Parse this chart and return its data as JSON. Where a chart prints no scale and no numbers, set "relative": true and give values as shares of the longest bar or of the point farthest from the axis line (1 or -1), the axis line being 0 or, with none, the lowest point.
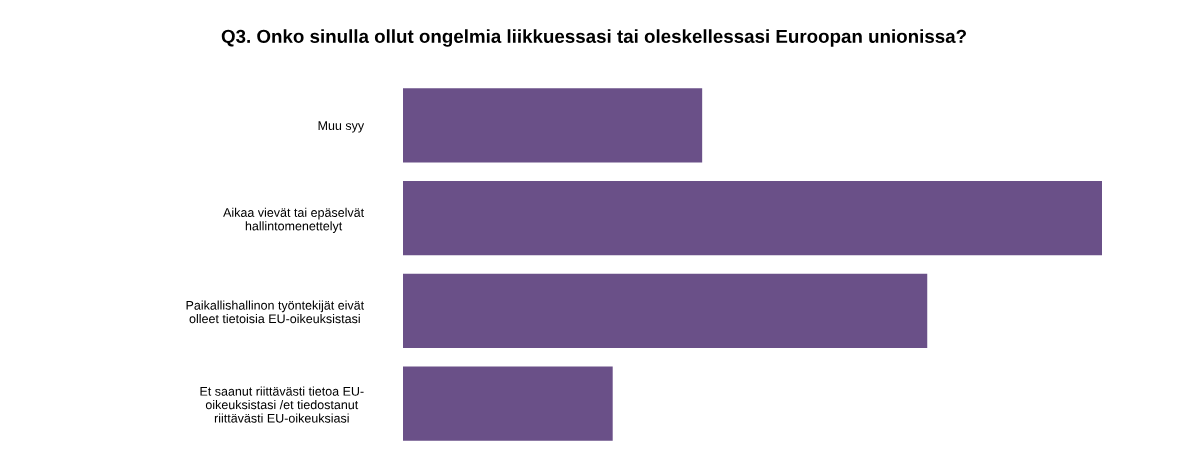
{
  "chart_data": {
    "type": "bar",
    "orientation": "horizontal",
    "relative": true,
    "title": "Q3. Onko sinulla ollut ongelmia liikkuessasi tai oleskellessasi Euroopan unionissa?",
    "categories": [
      "Muu syy",
      "Aikaa vievät tai epäselvät\nhallintomenettelyt",
      "Paikallishallinon työntekijät eivät\nolleet tietoisia EU-oikeuksistasi",
      "Et saanut riittävästi tietoa EU-\noikeuksistasi /et tiedostanut\nriittävästi EU-oikeuksiasi"
    ],
    "values": [
      0.428,
      1.0,
      0.75,
      0.3
    ],
    "color": "#6a5088",
    "grid": false,
    "legend": false
  }
}
